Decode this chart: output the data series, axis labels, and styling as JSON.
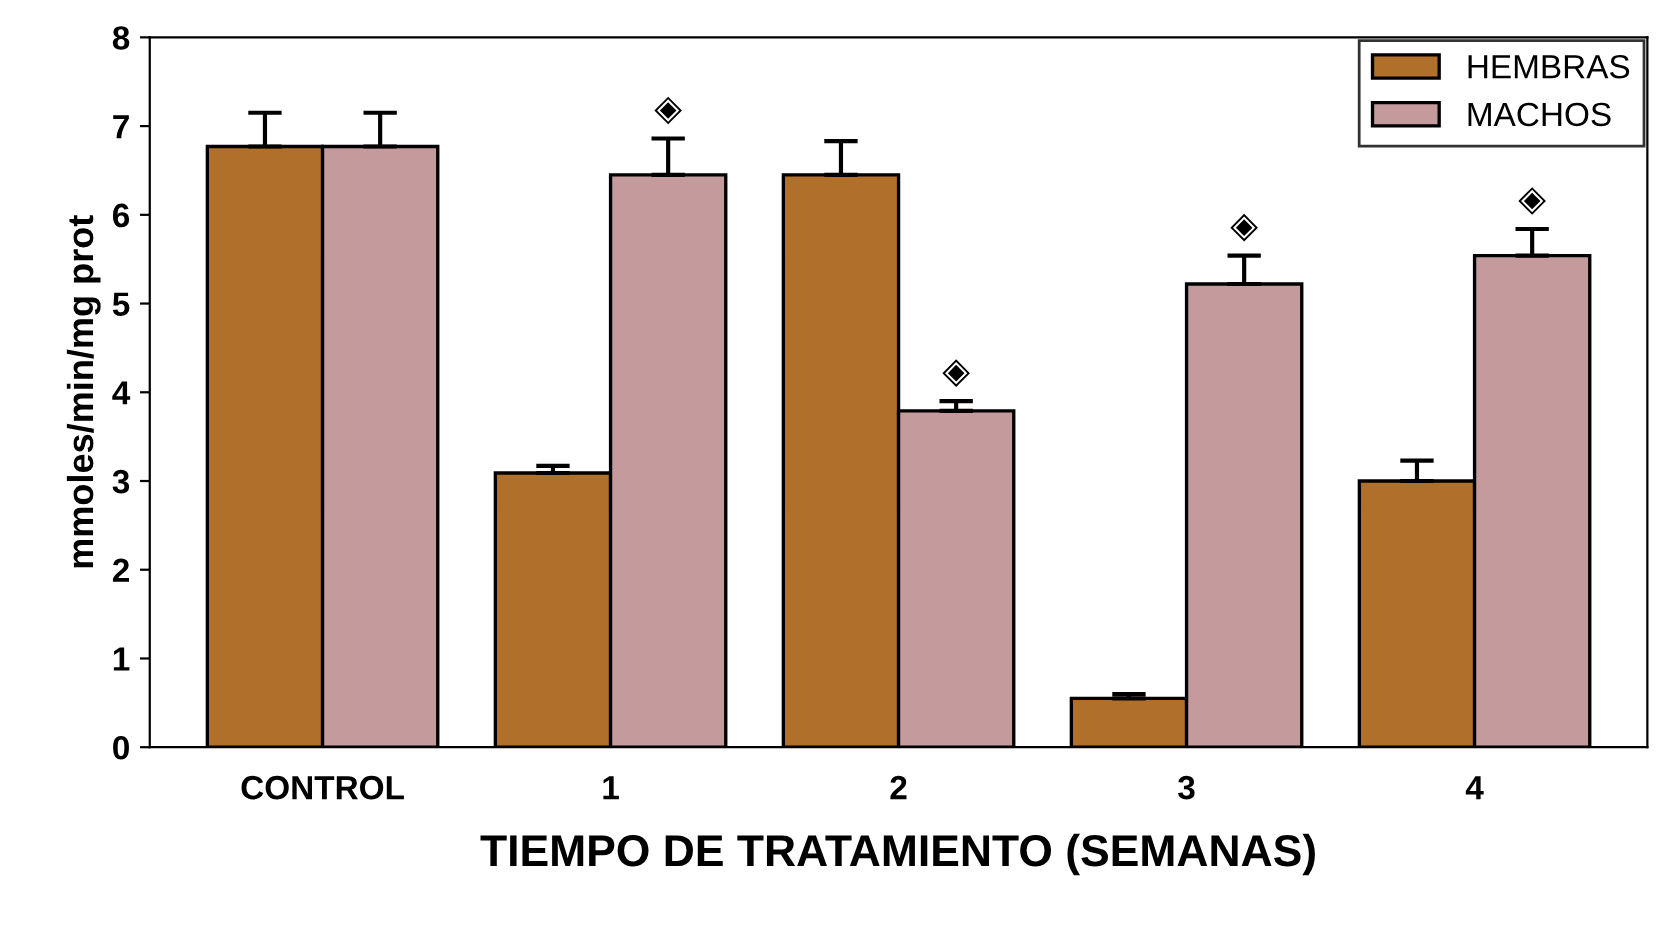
{
  "chart_data": {
    "type": "bar",
    "xlabel": "TIEMPO DE TRATAMIENTO (SEMANAS)",
    "ylabel": "mmoles/min/mg prot",
    "categories": [
      "CONTROL",
      "1",
      "2",
      "3",
      "4"
    ],
    "series": [
      {
        "name": "HEMBRAS",
        "color": "#b0702c",
        "values": [
          6.77,
          3.09,
          6.45,
          0.55,
          3.0
        ],
        "errors": [
          [
            6.77,
            7.15
          ],
          [
            3.09,
            3.17
          ],
          [
            6.45,
            6.83
          ],
          [
            0.55,
            0.6
          ],
          [
            3.0,
            3.23
          ]
        ]
      },
      {
        "name": "MACHOS",
        "color": "#c49a9c",
        "values": [
          6.77,
          6.45,
          3.79,
          5.22,
          5.54
        ],
        "errors": [
          [
            6.77,
            7.15
          ],
          [
            6.45,
            6.86
          ],
          [
            3.79,
            3.9
          ],
          [
            5.22,
            5.54
          ],
          [
            5.54,
            5.84
          ]
        ]
      }
    ],
    "annotations": [
      {
        "text": "◈",
        "x": "1",
        "y": 6.45
      },
      {
        "text": "◈",
        "x": "2",
        "y": 3.79
      },
      {
        "text": "◈",
        "x": "3",
        "y": 5.22
      },
      {
        "text": "◈",
        "x": "4",
        "y": 5.54
      }
    ],
    "ylim": [
      0,
      8
    ],
    "yticks": [
      0,
      1,
      2,
      3,
      4,
      5,
      6,
      7,
      8
    ],
    "grid": false,
    "legend": "top right"
  }
}
